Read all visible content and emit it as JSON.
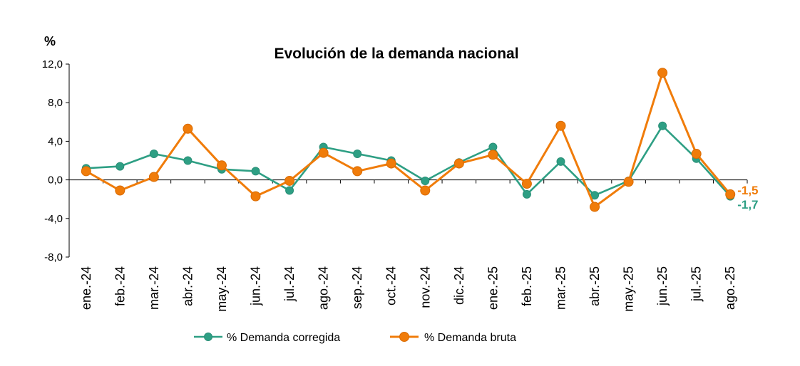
{
  "chart_data": {
    "type": "line",
    "title": "Evolución de la demanda nacional",
    "ylabel": "%",
    "xlabel": "",
    "ylim": [
      -8,
      12
    ],
    "yticks": [
      12,
      8,
      4,
      0,
      -4,
      -8
    ],
    "ytick_labels": [
      "12,0",
      "8,0",
      "4,0",
      "0,0",
      "-4,0",
      "-8,0"
    ],
    "categories": [
      "ene.-24",
      "feb.-24",
      "mar.-24",
      "abr.-24",
      "may.-24",
      "jun.-24",
      "jul.-24",
      "ago.-24",
      "sep.-24",
      "oct.-24",
      "nov.-24",
      "dic.-24",
      "ene.-25",
      "feb.-25",
      "mar.-25",
      "abr.-25",
      "may.-25",
      "jun.-25",
      "jul.-25",
      "ago.-25"
    ],
    "series": [
      {
        "name": "% Demanda corregida",
        "color": "#2e9f84",
        "values": [
          1.2,
          1.4,
          2.7,
          2.0,
          1.1,
          0.9,
          -1.1,
          3.4,
          2.7,
          2.0,
          -0.1,
          1.8,
          3.4,
          -1.5,
          1.9,
          -1.6,
          -0.1,
          5.6,
          2.2,
          -1.7
        ],
        "end_label": "-1,7"
      },
      {
        "name": "% Demanda bruta",
        "color": "#f07c0a",
        "values": [
          0.9,
          -1.1,
          0.3,
          5.3,
          1.5,
          -1.7,
          -0.1,
          2.8,
          0.9,
          1.7,
          -1.1,
          1.7,
          2.6,
          -0.4,
          5.6,
          -2.8,
          -0.2,
          11.1,
          2.7,
          -1.5
        ],
        "end_label": "-1,5"
      }
    ],
    "legend_position": "bottom-center",
    "grid": false
  }
}
